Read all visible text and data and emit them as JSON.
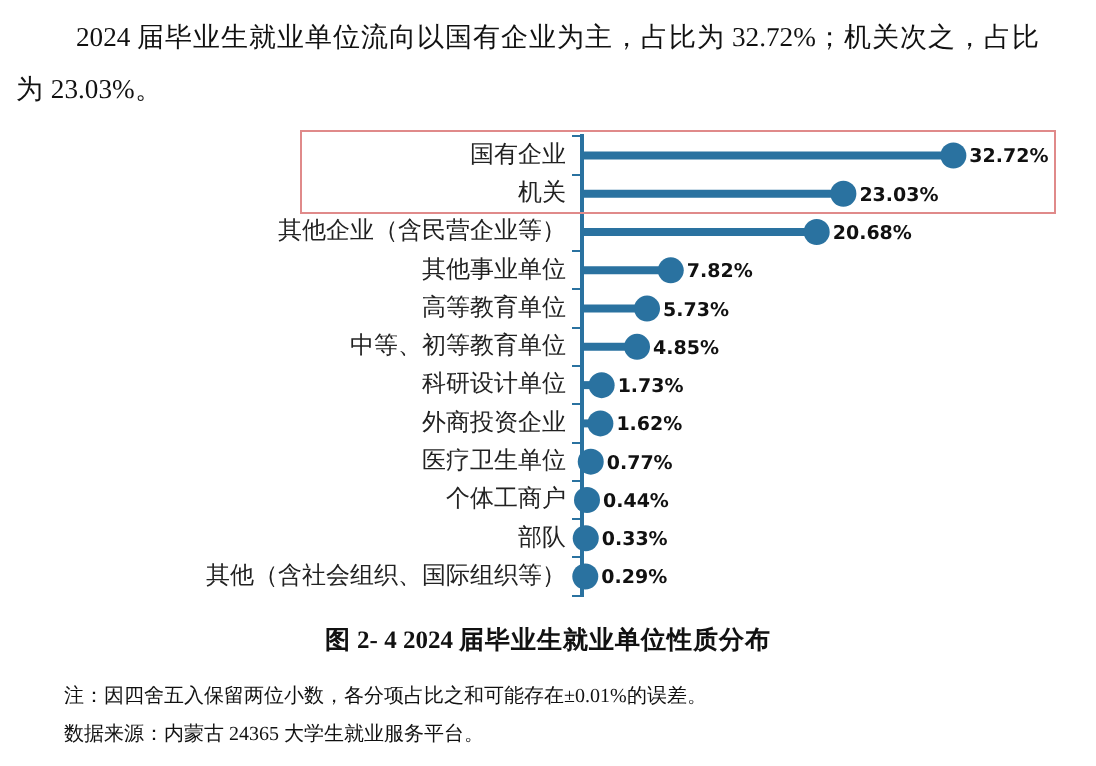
{
  "chart_data": {
    "type": "lollipop",
    "orientation": "horizontal",
    "subtitle": "2024 届毕业生就业单位流向以国有企业为主，占比为 32.72%；机关次之，占比为 23.03%。",
    "title": "图 2- 4  2024 届毕业生就业单位性质分布",
    "annotations": [
      "注：因四舍五入保留两位小数，各分项占比之和可能存在±0.01%的误差。",
      "数据来源：内蒙古 24365 大学生就业服务平台。"
    ],
    "categories": [
      "国有企业",
      "机关",
      "其他企业（含民营企业等）",
      "其他事业单位",
      "高等教育单位",
      "中等、初等教育单位",
      "科研设计单位",
      "外商投资企业",
      "医疗卫生单位",
      "个体工商户",
      "部队",
      "其他（含社会组织、国际组织等）"
    ],
    "values": [
      32.72,
      23.03,
      20.68,
      7.82,
      5.73,
      4.85,
      1.73,
      1.62,
      0.77,
      0.44,
      0.33,
      0.29
    ],
    "value_labels": [
      "32.72%",
      "23.03%",
      "20.68%",
      "7.82%",
      "5.73%",
      "4.85%",
      "1.73%",
      "1.62%",
      "0.77%",
      "0.44%",
      "0.33%",
      "0.29%"
    ],
    "color": "#2a72a0",
    "tick_labels": "y",
    "legend": false
  }
}
